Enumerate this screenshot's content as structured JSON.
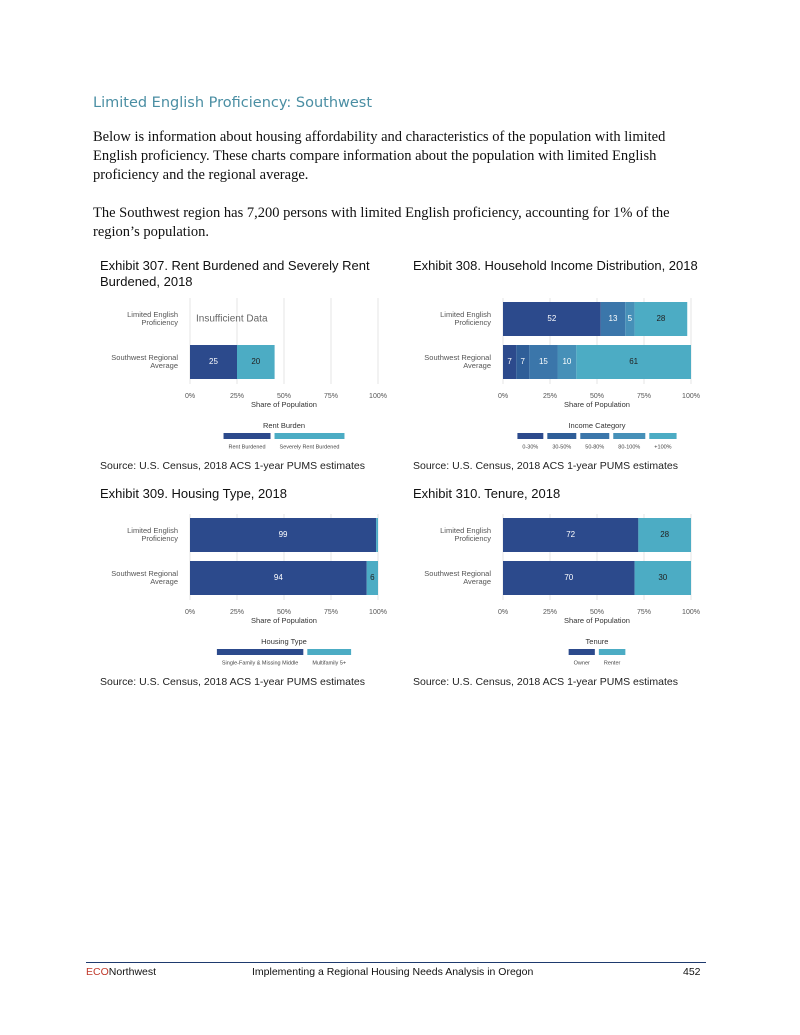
{
  "header": {
    "title": "Limited English Proficiency: Southwest"
  },
  "paragraphs": [
    "Below is information about housing affordability and characteristics of the population with limited English proficiency. These charts compare information about the population with limited English proficiency and the regional average.",
    "The Southwest region has 7,200 persons with limited English proficiency, accounting for 1% of the region’s population."
  ],
  "chart_data": [
    {
      "type": "bar",
      "orientation": "horizontal",
      "stacked": true,
      "title": "Exhibit 307. Rent Burdened and Severely Rent Burdened, 2018",
      "categories": [
        "Limited English Proficiency",
        "Southwest Regional Average"
      ],
      "series": [
        {
          "name": "Rent Burdened",
          "color": "#2c4a8c",
          "values": [
            null,
            25
          ]
        },
        {
          "name": "Severely Rent Burdened",
          "color": "#4cacc4",
          "values": [
            null,
            20
          ]
        }
      ],
      "annotation": "Insufficient Data",
      "xlabel": "Share of Population",
      "legend_title": "Rent Burden",
      "xlim": [
        0,
        100
      ],
      "xticks": [
        {
          "value": 0,
          "label": "0%"
        },
        {
          "value": 25,
          "label": "25%"
        },
        {
          "value": 50,
          "label": "50%"
        },
        {
          "value": 75,
          "label": "75%"
        },
        {
          "value": 100,
          "label": "100%"
        }
      ],
      "grid": true,
      "source": "Source: U.S. Census, 2018 ACS 1-year PUMS estimates"
    },
    {
      "type": "bar",
      "orientation": "horizontal",
      "stacked": true,
      "title": "Exhibit 308. Household Income Distribution, 2018",
      "categories": [
        "Limited English Proficiency",
        "Southwest Regional Average"
      ],
      "series": [
        {
          "name": "0-30%",
          "color": "#2c4a8c",
          "values": [
            52,
            7
          ]
        },
        {
          "name": "30-50%",
          "color": "#2f5e98",
          "values": [
            null,
            7
          ]
        },
        {
          "name": "50-80%",
          "color": "#3b76aa",
          "values": [
            13,
            15
          ]
        },
        {
          "name": "80-100%",
          "color": "#4690b8",
          "values": [
            5,
            10
          ]
        },
        {
          "name": "+100%",
          "color": "#4cacc4",
          "values": [
            28,
            61
          ]
        }
      ],
      "xlabel": "Share of Population",
      "legend_title": "Income Category",
      "xlim": [
        0,
        100
      ],
      "xticks": [
        {
          "value": 0,
          "label": "0%"
        },
        {
          "value": 25,
          "label": "25%"
        },
        {
          "value": 50,
          "label": "50%"
        },
        {
          "value": 75,
          "label": "75%"
        },
        {
          "value": 100,
          "label": "100%"
        }
      ],
      "grid": true,
      "source": "Source: U.S. Census, 2018 ACS 1-year PUMS estimates"
    },
    {
      "type": "bar",
      "orientation": "horizontal",
      "stacked": true,
      "title": "Exhibit 309. Housing Type, 2018",
      "categories": [
        "Limited English Proficiency",
        "Southwest Regional Average"
      ],
      "series": [
        {
          "name": "Single-Family & Missing Middle",
          "color": "#2c4a8c",
          "values": [
            99,
            94
          ]
        },
        {
          "name": "Multifamily 5+",
          "color": "#4cacc4",
          "values": [
            1,
            6
          ]
        }
      ],
      "xlabel": "Share of Population",
      "legend_title": "Housing Type",
      "xlim": [
        0,
        100
      ],
      "xticks": [
        {
          "value": 0,
          "label": "0%"
        },
        {
          "value": 25,
          "label": "25%"
        },
        {
          "value": 50,
          "label": "50%"
        },
        {
          "value": 75,
          "label": "75%"
        },
        {
          "value": 100,
          "label": "100%"
        }
      ],
      "grid": true,
      "source": "Source: U.S. Census, 2018 ACS 1-year PUMS estimates"
    },
    {
      "type": "bar",
      "orientation": "horizontal",
      "stacked": true,
      "title": "Exhibit 310. Tenure, 2018",
      "categories": [
        "Limited English Proficiency",
        "Southwest Regional Average"
      ],
      "series": [
        {
          "name": "Owner",
          "color": "#2c4a8c",
          "values": [
            72,
            70
          ]
        },
        {
          "name": "Renter",
          "color": "#4cacc4",
          "values": [
            28,
            30
          ]
        }
      ],
      "xlabel": "Share of Population",
      "legend_title": "Tenure",
      "xlim": [
        0,
        100
      ],
      "xticks": [
        {
          "value": 0,
          "label": "0%"
        },
        {
          "value": 25,
          "label": "25%"
        },
        {
          "value": 50,
          "label": "50%"
        },
        {
          "value": 75,
          "label": "75%"
        },
        {
          "value": 100,
          "label": "100%"
        }
      ],
      "grid": true,
      "source": "Source: U.S. Census, 2018 ACS 1-year PUMS estimates"
    }
  ],
  "footer": {
    "brand_red": "ECO",
    "brand_black": "Northwest",
    "title": "Implementing a Regional Housing Needs Analysis in Oregon",
    "page": "452"
  }
}
